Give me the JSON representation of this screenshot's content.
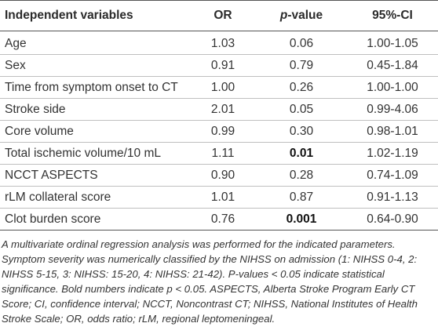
{
  "table": {
    "headers": {
      "variables": "Independent variables",
      "or": "OR",
      "p_prefix": "p",
      "p_suffix": "-value",
      "ci": "95%-CI"
    },
    "rows": [
      {
        "variable": "Age",
        "or": "1.03",
        "p": "0.06",
        "p_bold": false,
        "ci": "1.00-1.05"
      },
      {
        "variable": "Sex",
        "or": "0.91",
        "p": "0.79",
        "p_bold": false,
        "ci": "0.45-1.84"
      },
      {
        "variable": "Time from symptom onset to CT",
        "or": "1.00",
        "p": "0.26",
        "p_bold": false,
        "ci": "1.00-1.00"
      },
      {
        "variable": "Stroke side",
        "or": "2.01",
        "p": "0.05",
        "p_bold": false,
        "ci": "0.99-4.06"
      },
      {
        "variable": "Core volume",
        "or": "0.99",
        "p": "0.30",
        "p_bold": false,
        "ci": "0.98-1.01"
      },
      {
        "variable": "Total ischemic volume/10 mL",
        "or": "1.11",
        "p": "0.01",
        "p_bold": true,
        "ci": "1.02-1.19"
      },
      {
        "variable": "NCCT ASPECTS",
        "or": "0.90",
        "p": "0.28",
        "p_bold": false,
        "ci": "0.74-1.09"
      },
      {
        "variable": "rLM collateral score",
        "or": "1.01",
        "p": "0.87",
        "p_bold": false,
        "ci": "0.91-1.13"
      },
      {
        "variable": "Clot burden score",
        "or": "0.76",
        "p": "0.001",
        "p_bold": true,
        "ci": "0.64-0.90"
      }
    ]
  },
  "footnote": "A multivariate ordinal regression analysis was performed for the indicated parameters. Symptom severity was numerically classified by the NIHSS on admission (1: NIHSS 0-4, 2: NIHSS 5-15, 3: NIHSS: 15-20, 4: NIHSS: 21-42). P-values < 0.05 indicate statistical significance. Bold numbers indicate p < 0.05. ASPECTS, Alberta Stroke Program Early CT Score; CI, confidence interval; NCCT, Noncontrast CT; NIHSS, National Institutes of Health Stroke Scale; OR, odds ratio; rLM, regional leptomeningeal."
}
